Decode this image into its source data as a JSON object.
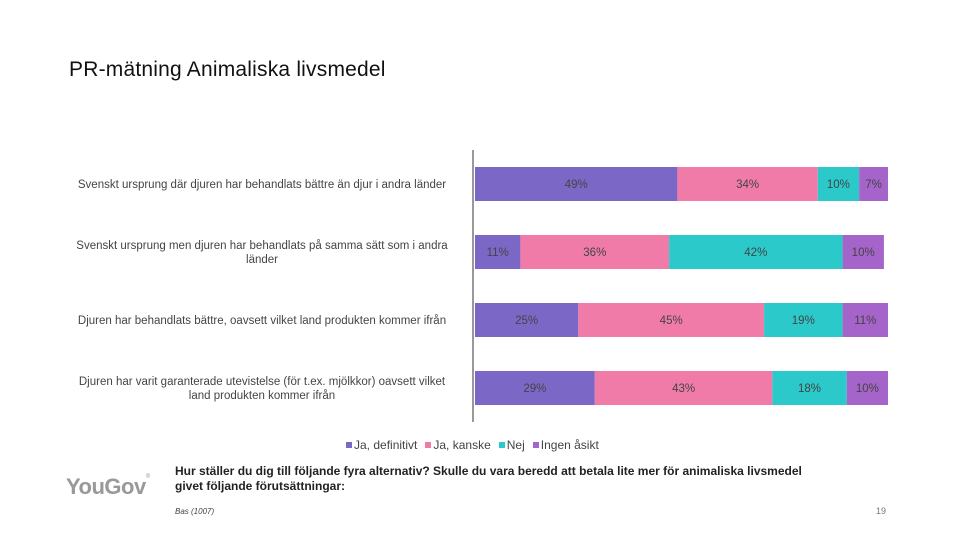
{
  "title": "PR-mätning Animaliska livsmedel",
  "chart_data": {
    "type": "bar",
    "orientation": "horizontal",
    "stacked": true,
    "categories": [
      "Svenskt ursprung där djuren har behandlats bättre än djur i andra länder",
      "Svenskt ursprung men djuren har behandlats på samma sätt som i andra länder",
      "Djuren har behandlats bättre, oavsett vilket land produkten kommer ifrån",
      "Djuren har varit garanterade utevistelse (för t.ex. mjölkkor) oavsett vilket land produkten kommer ifrån"
    ],
    "series": [
      {
        "name": "Ja, definitivt",
        "color": "#7b68c6",
        "values": [
          49,
          11,
          25,
          29
        ],
        "labels": [
          "49%",
          "11%",
          "25%",
          "29%"
        ]
      },
      {
        "name": "Ja, kanske",
        "color": "#f07ba8",
        "values": [
          34,
          36,
          45,
          43
        ],
        "labels": [
          "34%",
          "36%",
          "45%",
          "43%"
        ]
      },
      {
        "name": "Nej",
        "color": "#2bc9c9",
        "values": [
          10,
          42,
          19,
          18
        ],
        "labels": [
          "10%",
          "42%",
          "19%",
          "18%"
        ]
      },
      {
        "name": "Ingen åsikt",
        "color": "#a564c9",
        "values": [
          7,
          10,
          11,
          10
        ],
        "labels": [
          "7%",
          "10%",
          "11%",
          "10%"
        ]
      }
    ],
    "xlim": [
      0,
      100
    ]
  },
  "legend": {
    "items": [
      {
        "label": "Ja, definitivt",
        "color": "#7b68c6"
      },
      {
        "label": "Ja, kanske",
        "color": "#f07ba8"
      },
      {
        "label": "Nej",
        "color": "#2bc9c9"
      },
      {
        "label": "Ingen åsikt",
        "color": "#a564c9"
      }
    ]
  },
  "footer": {
    "logo": "YouGov",
    "question": "Hur ställer du dig till följande fyra alternativ? Skulle du vara beredd att betala lite mer för animaliska livsmedel givet följande förutsättningar:",
    "base": "Bas (1007)",
    "page_number": "19"
  }
}
